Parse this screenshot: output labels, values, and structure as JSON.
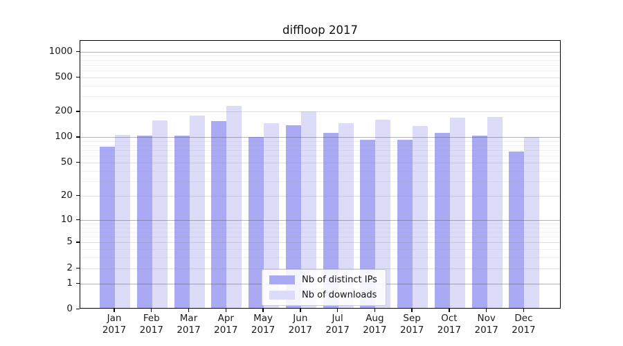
{
  "title": "diffloop 2017",
  "year": "2017",
  "colors": {
    "distinct_ips": "#a9a9f4",
    "downloads": "#dcdcf9",
    "axis": "#000000",
    "background": "#ffffff"
  },
  "legend": {
    "items": [
      {
        "label": "Nb of distinct IPs",
        "color": "#a9a9f4"
      },
      {
        "label": "Nb of downloads",
        "color": "#dcdcf9"
      }
    ]
  },
  "y_axis": {
    "tick_labels": [
      "0",
      "1",
      "2",
      "5",
      "10",
      "20",
      "50",
      "100",
      "200",
      "500",
      "1000"
    ]
  },
  "chart_data": {
    "type": "bar",
    "title": "diffloop 2017",
    "categories": [
      "Jan 2017",
      "Feb 2017",
      "Mar 2017",
      "Apr 2017",
      "May 2017",
      "Jun 2017",
      "Jul 2017",
      "Aug 2017",
      "Sep 2017",
      "Oct 2017",
      "Nov 2017",
      "Dec 2017"
    ],
    "months": [
      "Jan",
      "Feb",
      "Mar",
      "Apr",
      "May",
      "Jun",
      "Jul",
      "Aug",
      "Sep",
      "Oct",
      "Nov",
      "Dec"
    ],
    "series": [
      {
        "name": "Nb of distinct IPs",
        "color": "#a9a9f4",
        "values": [
          75,
          100,
          101,
          148,
          96,
          132,
          108,
          89,
          90,
          108,
          101,
          65
        ]
      },
      {
        "name": "Nb of downloads",
        "color": "#dcdcf9",
        "values": [
          102,
          151,
          174,
          225,
          140,
          193,
          141,
          155,
          130,
          164,
          167,
          97
        ]
      }
    ],
    "xlabel": "",
    "ylabel": "",
    "y_scale": "log1p",
    "y_ticks": [
      0,
      1,
      2,
      5,
      10,
      20,
      50,
      100,
      200,
      500,
      1000
    ],
    "y_decade_ticks": [
      1,
      10,
      100,
      1000
    ],
    "y_minor_ticks": [
      3,
      4,
      6,
      7,
      8,
      9,
      30,
      40,
      60,
      70,
      80,
      90,
      300,
      400,
      600,
      700,
      800,
      900
    ],
    "ylim": [
      0,
      1337
    ],
    "grid": "on",
    "legend_position": "lower center inside"
  }
}
